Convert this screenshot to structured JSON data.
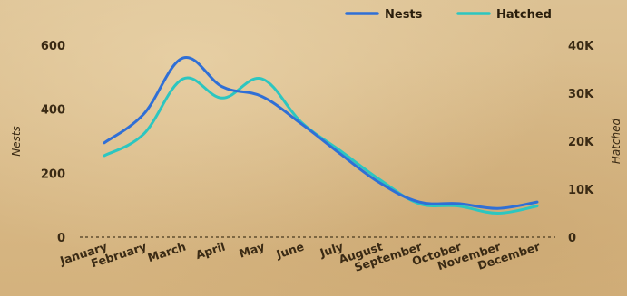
{
  "chart_data": {
    "type": "line",
    "categories": [
      "January",
      "February",
      "March",
      "April",
      "May",
      "June",
      "July",
      "August",
      "September",
      "October",
      "November",
      "December"
    ],
    "series": [
      {
        "name": "Nests",
        "axis": "left",
        "color": "#2f6fd6",
        "values": [
          295,
          385,
          560,
          470,
          440,
          355,
          260,
          170,
          110,
          105,
          90,
          110
        ]
      },
      {
        "name": "Hatched",
        "axis": "right",
        "color": "#2cc6c0",
        "values": [
          17000,
          21500,
          33000,
          29000,
          33000,
          24000,
          18000,
          12000,
          7000,
          6500,
          5000,
          6500
        ]
      }
    ],
    "ylabel": "Nests",
    "y2label": "Hatched",
    "ylim": [
      0,
      600
    ],
    "y2lim": [
      0,
      40000
    ],
    "yticks": [
      0,
      200,
      400,
      600
    ],
    "y2ticks": [
      "0",
      "10K",
      "20K",
      "30K",
      "40K"
    ],
    "legend": "top-right",
    "grid": false
  }
}
